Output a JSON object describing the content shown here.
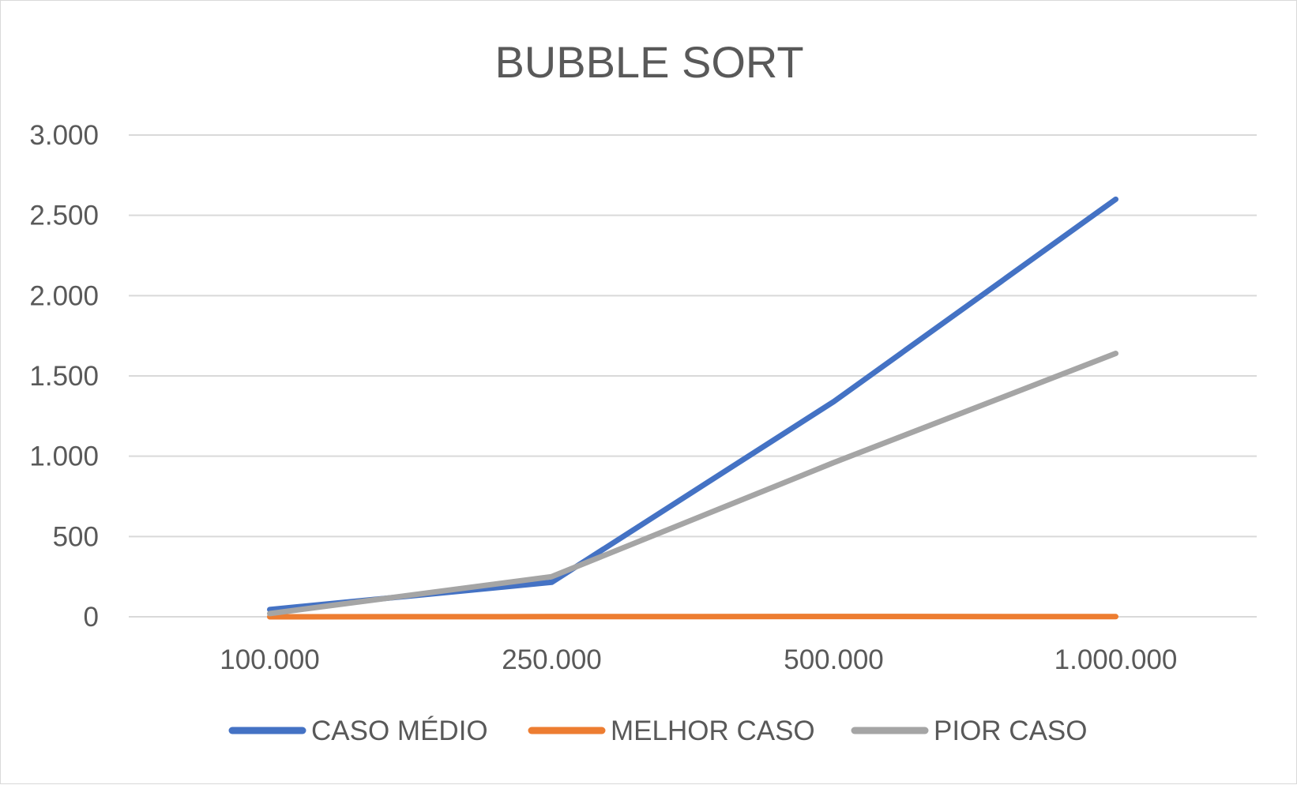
{
  "chart_data": {
    "type": "line",
    "title": "BUBBLE SORT",
    "xlabel": "",
    "ylabel": "",
    "categories": [
      "100.000",
      "250.000",
      "500.000",
      "1.000.000"
    ],
    "ylim": [
      0,
      3000
    ],
    "yticks": [
      0,
      500,
      1000,
      1500,
      2000,
      2500,
      3000
    ],
    "ytick_labels": [
      "0",
      "500",
      "1.000",
      "1.500",
      "2.000",
      "2.500",
      "3.000"
    ],
    "grid": true,
    "legend_position": "bottom",
    "series": [
      {
        "name": "CASO MÉDIO",
        "color": "#4472c4",
        "values": [
          45,
          215,
          1340,
          2600
        ]
      },
      {
        "name": "MELHOR CASO",
        "color": "#ed7d31",
        "values": [
          0,
          1,
          2,
          1
        ]
      },
      {
        "name": "PIOR CASO",
        "color": "#a5a5a5",
        "values": [
          20,
          250,
          960,
          1640
        ]
      }
    ]
  }
}
